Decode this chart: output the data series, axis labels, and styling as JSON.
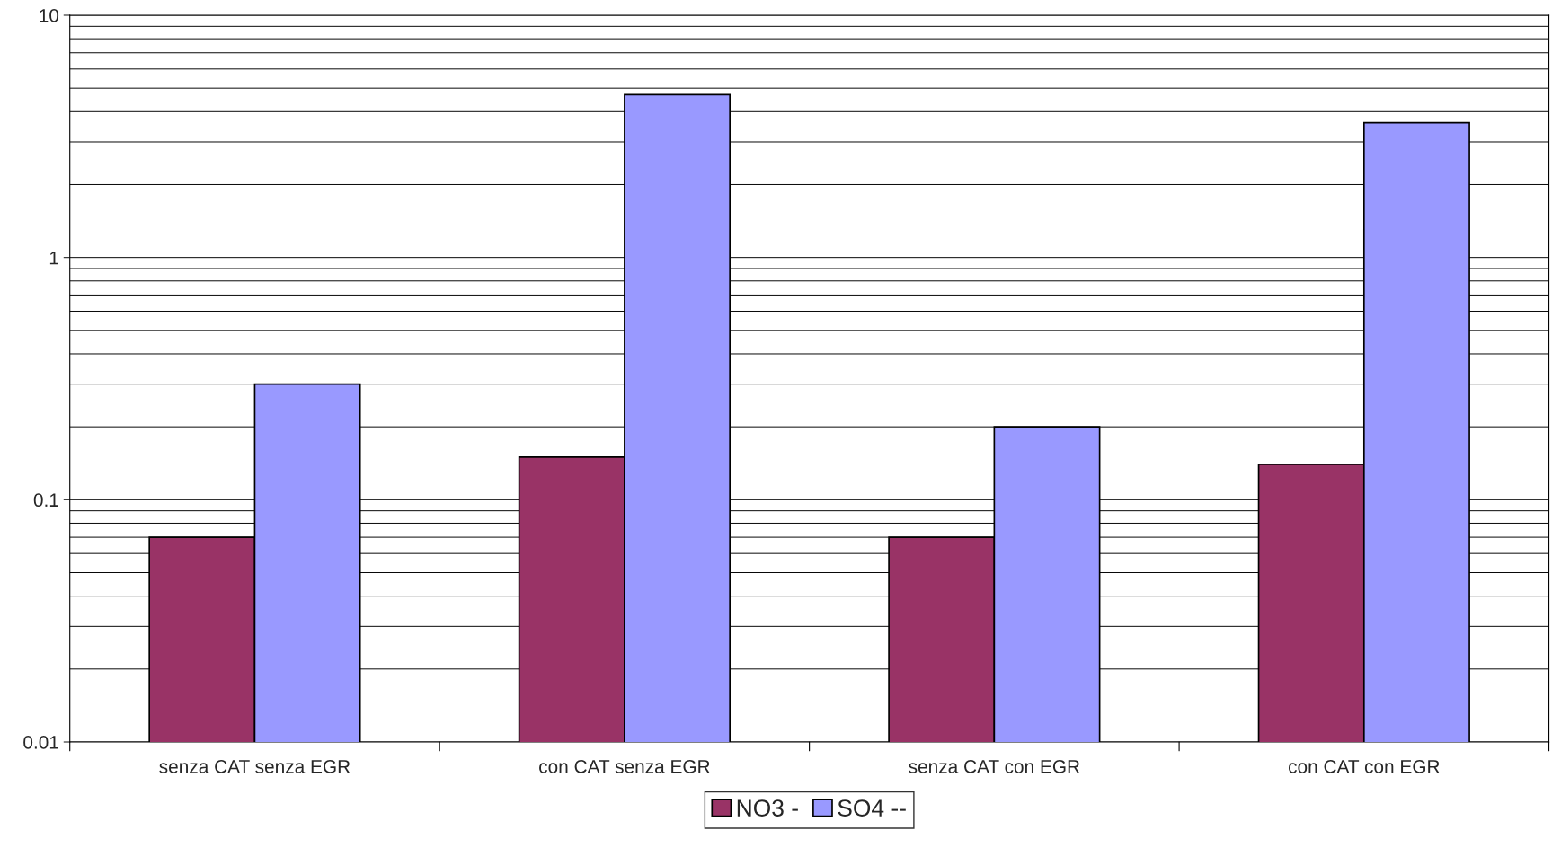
{
  "chart_data": {
    "type": "bar",
    "categories": [
      "senza CAT senza EGR",
      "con CAT senza EGR",
      "senza CAT con EGR",
      "con CAT con EGR"
    ],
    "series": [
      {
        "name": "NO3 -",
        "color": "#993366",
        "values": [
          0.07,
          0.15,
          0.07,
          0.14
        ]
      },
      {
        "name": "SO4 --",
        "color": "#9999ff",
        "values": [
          0.3,
          4.7,
          0.2,
          3.6
        ]
      }
    ],
    "log": "y",
    "ylim": [
      0.01,
      10
    ],
    "yticks": [
      0.01,
      0.1,
      1,
      10
    ],
    "grid": "y",
    "legend": "bottom"
  }
}
